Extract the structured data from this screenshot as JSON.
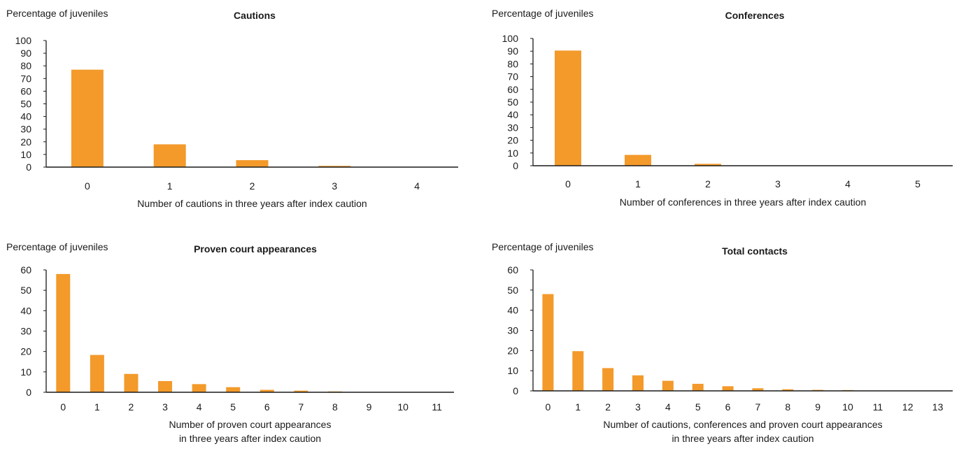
{
  "colors": {
    "bar": "#F39A2B",
    "axis": "#1a1a1a"
  },
  "chart_data": [
    {
      "type": "bar",
      "title": "Cautions",
      "ylabel": "Percentage of juveniles",
      "xlabel_lines": [
        "Number of cautions in three years after index caution"
      ],
      "categories": [
        "0",
        "1",
        "2",
        "3",
        "4"
      ],
      "values": [
        77,
        18,
        5.5,
        1,
        0
      ],
      "ylim": [
        0,
        100
      ],
      "yticks": [
        0,
        10,
        20,
        30,
        40,
        50,
        60,
        70,
        80,
        90,
        100
      ],
      "grid": false
    },
    {
      "type": "bar",
      "title": "Conferences",
      "ylabel": "Percentage of juveniles",
      "xlabel_lines": [
        "Number of conferences in three years after index caution"
      ],
      "categories": [
        "0",
        "1",
        "2",
        "3",
        "4",
        "5"
      ],
      "values": [
        90.5,
        8.5,
        1.5,
        0,
        0,
        0
      ],
      "ylim": [
        0,
        100
      ],
      "yticks": [
        0,
        10,
        20,
        30,
        40,
        50,
        60,
        70,
        80,
        90,
        100
      ],
      "grid": false
    },
    {
      "type": "bar",
      "title": "Proven court appearances",
      "ylabel": "Percentage of juveniles",
      "xlabel_lines": [
        "Number of proven court appearances",
        "in three years after index caution"
      ],
      "categories": [
        "0",
        "1",
        "2",
        "3",
        "4",
        "5",
        "6",
        "7",
        "8",
        "9",
        "10",
        "11"
      ],
      "values": [
        58,
        18.3,
        9,
        5.5,
        4,
        2.5,
        1.2,
        0.8,
        0.4,
        0,
        0,
        0
      ],
      "ylim": [
        0,
        60
      ],
      "yticks": [
        0,
        10,
        20,
        30,
        40,
        50,
        60
      ],
      "grid": false
    },
    {
      "type": "bar",
      "title": "Total contacts",
      "ylabel": "Percentage of juveniles",
      "xlabel_lines": [
        "Number of cautions, conferences and proven court appearances",
        "in three years after index caution"
      ],
      "categories": [
        "0",
        "1",
        "2",
        "3",
        "4",
        "5",
        "6",
        "7",
        "8",
        "9",
        "10",
        "11",
        "12",
        "13"
      ],
      "values": [
        48,
        19.7,
        11.3,
        7.7,
        5,
        3.5,
        2.3,
        1.3,
        0.8,
        0.5,
        0.4,
        0,
        0,
        0
      ],
      "ylim": [
        0,
        60
      ],
      "yticks": [
        0,
        10,
        20,
        30,
        40,
        50,
        60
      ],
      "grid": false
    }
  ]
}
